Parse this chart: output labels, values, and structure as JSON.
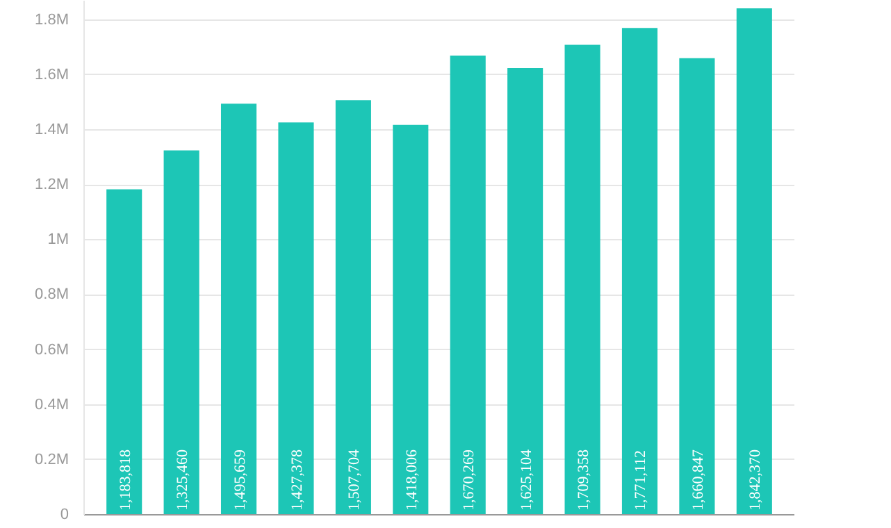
{
  "chart_data": {
    "type": "bar",
    "categories": [
      null,
      null,
      null,
      null,
      null,
      null,
      null,
      null,
      null,
      null,
      null,
      null
    ],
    "values": [
      1183818,
      1325460,
      1495659,
      1427378,
      1507704,
      1418006,
      1670269,
      1625104,
      1709358,
      1771112,
      1660847,
      1842370
    ],
    "value_labels": [
      "1,183,818",
      "1,325,460",
      "1,495,659",
      "1,427,378",
      "1,507,704",
      "1,418,006",
      "1,670,269",
      "1,625,104",
      "1,709,358",
      "1,771,112",
      "1,660,847",
      "1,842,370"
    ],
    "color": "#1dc6b6",
    "ylim": [
      0,
      1870000
    ],
    "yticks": [
      {
        "value": 0,
        "label": "0"
      },
      {
        "value": 200000,
        "label": "0.2M"
      },
      {
        "value": 400000,
        "label": "0.4M"
      },
      {
        "value": 600000,
        "label": "0.6M"
      },
      {
        "value": 800000,
        "label": "0.8M"
      },
      {
        "value": 1000000,
        "label": "1M"
      },
      {
        "value": 1200000,
        "label": "1.2M"
      },
      {
        "value": 1400000,
        "label": "1.4M"
      },
      {
        "value": 1600000,
        "label": "1.6M"
      },
      {
        "value": 1800000,
        "label": "1.8M"
      }
    ],
    "grid": "y"
  }
}
